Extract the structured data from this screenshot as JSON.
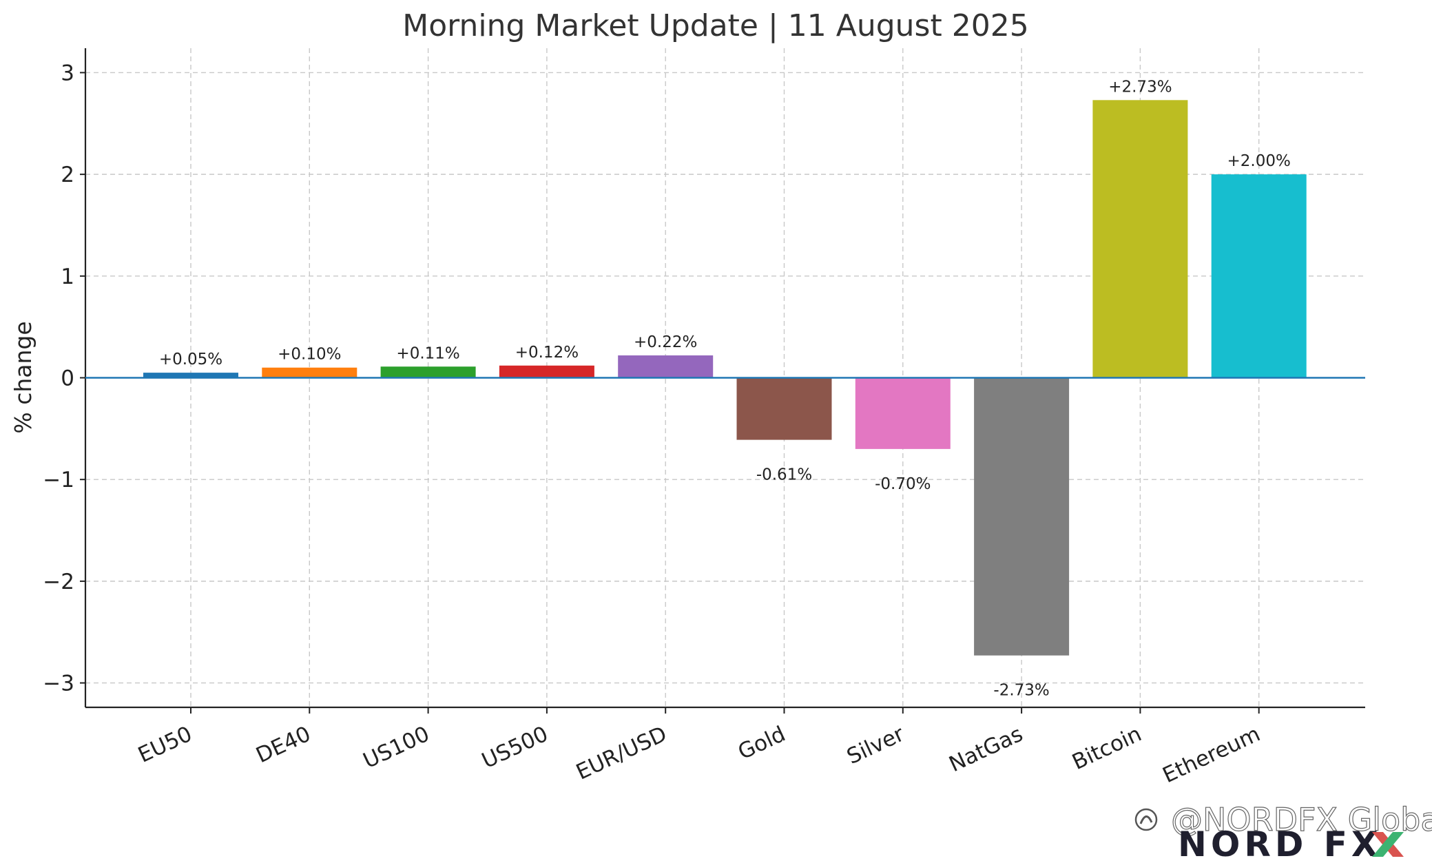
{
  "chart_data": {
    "type": "bar",
    "title": "Morning Market Update | 11 August 2025",
    "ylabel": "% change",
    "xlabel": "",
    "categories": [
      "EU50",
      "DE40",
      "US100",
      "US500",
      "EUR/USD",
      "Gold",
      "Silver",
      "NatGas",
      "Bitcoin",
      "Ethereum"
    ],
    "values": [
      0.05,
      0.1,
      0.11,
      0.12,
      0.22,
      -0.61,
      -0.7,
      -2.73,
      2.73,
      2.0
    ],
    "data_labels": [
      "+0.05%",
      "+0.10%",
      "+0.11%",
      "+0.12%",
      "+0.22%",
      "-0.61%",
      "-0.70%",
      "-2.73%",
      "+2.73%",
      "+2.00%"
    ],
    "colors": [
      "#1f77b4",
      "#ff7f0e",
      "#2ca02c",
      "#d62728",
      "#9467bd",
      "#8c564b",
      "#e377c2",
      "#7f7f7f",
      "#bcbd22",
      "#17becf"
    ],
    "ylim": [
      -3.24,
      3.24
    ],
    "yticks": [
      -3,
      -2,
      -1,
      0,
      1,
      2,
      3
    ],
    "ytick_labels": [
      "−3",
      "−2",
      "−1",
      "0",
      "1",
      "2",
      "3"
    ],
    "grid": true,
    "zero_line_color": "#1f77b4"
  },
  "watermark": {
    "text": "@NORDFX Global",
    "logo": "NORD FX",
    "logo_icon": "nordfx-x-logo-icon",
    "app_icon": "social-app-icon"
  }
}
